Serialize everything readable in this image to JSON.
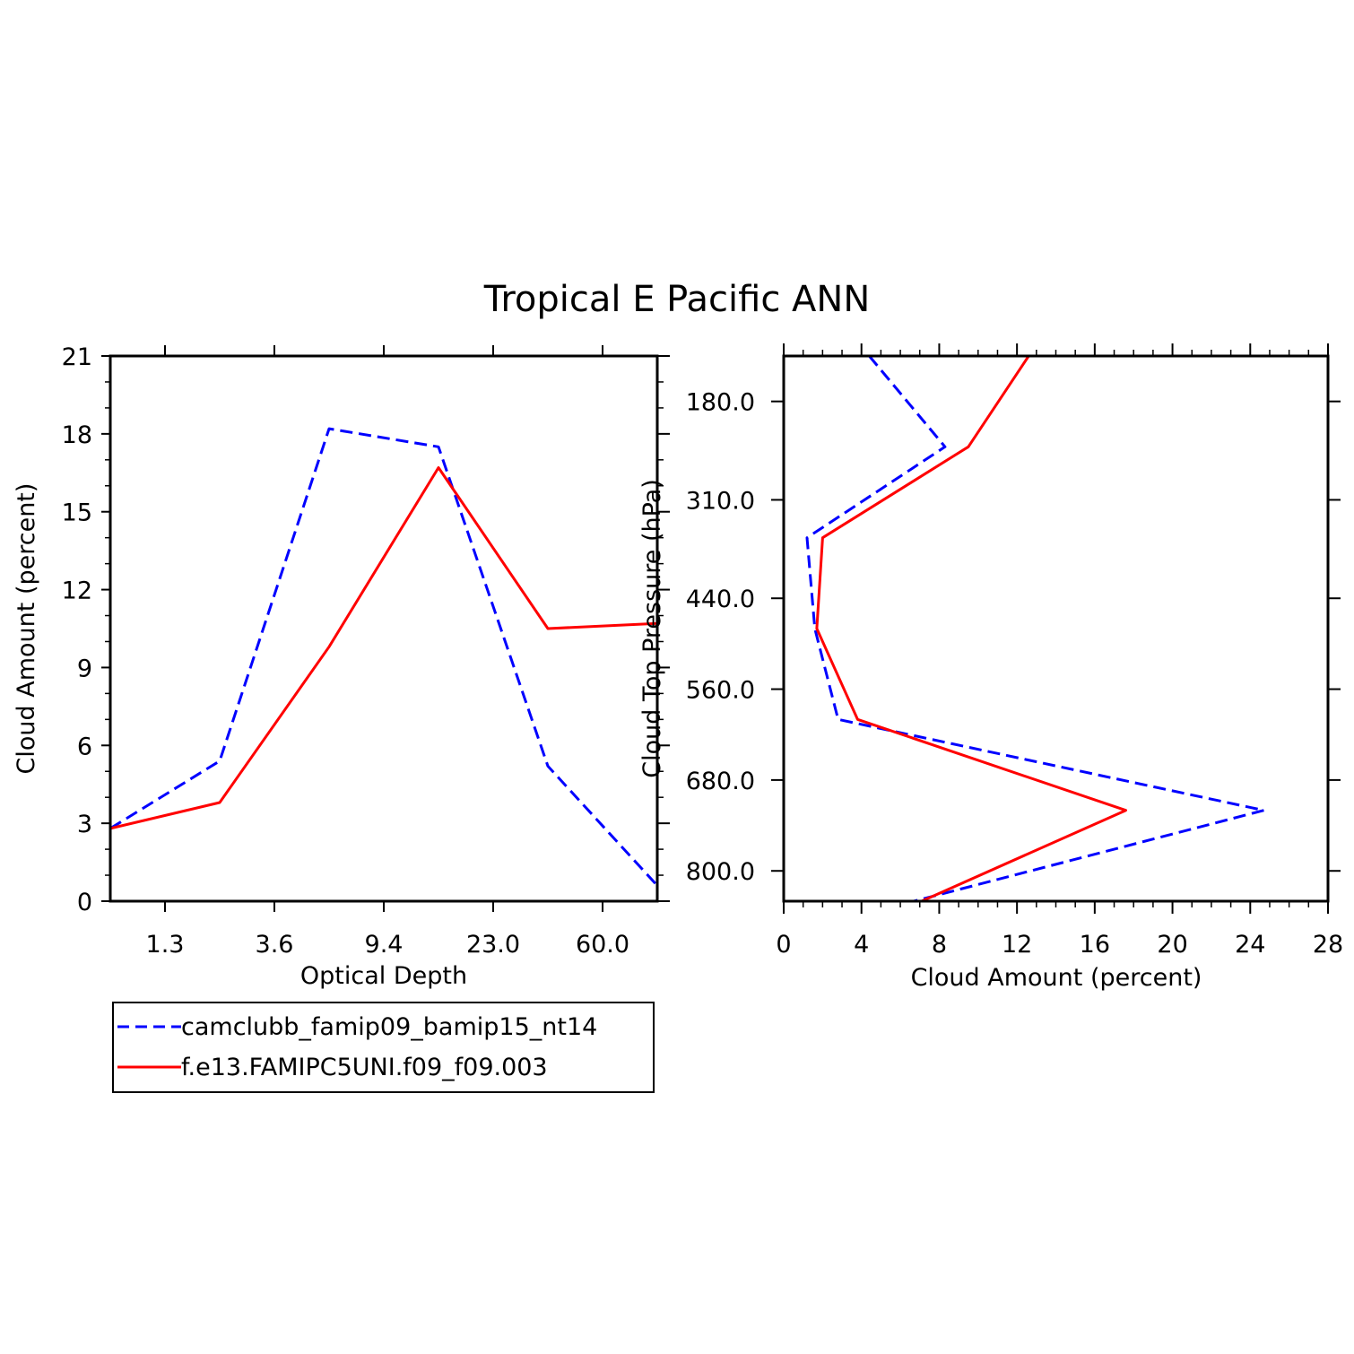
{
  "title": "Tropical E Pacific ANN",
  "chart_data": [
    {
      "type": "line",
      "xlabel": "Optical Depth",
      "ylabel": "Cloud Amount (percent)",
      "categories": [
        "1.3",
        "3.6",
        "9.4",
        "23.0",
        "60.0"
      ],
      "x": [
        0,
        1,
        2,
        3,
        4,
        5
      ],
      "xlim": [
        0,
        5
      ],
      "ylim": [
        0,
        21
      ],
      "yticks": [
        0,
        3,
        6,
        9,
        12,
        15,
        18,
        21
      ],
      "series": [
        {
          "name": "camclubb_famip09_bamip15_nt14",
          "color": "#0000ff",
          "dash": "dashed",
          "values": [
            2.8,
            5.4,
            18.2,
            17.5,
            5.2,
            0.6
          ]
        },
        {
          "name": "f.e13.FAMIPC5UNI.f09_f09.003",
          "color": "#ff0000",
          "dash": "solid",
          "values": [
            2.8,
            3.8,
            9.8,
            16.7,
            10.5,
            10.7
          ]
        }
      ]
    },
    {
      "type": "line",
      "xlabel": "Cloud Amount (percent)",
      "ylabel": "Cloud Top Pressure (hPa)",
      "xlim": [
        0,
        28
      ],
      "xticks": [
        0,
        4,
        8,
        12,
        16,
        20,
        24,
        28
      ],
      "yticks": [
        180,
        310,
        440,
        560,
        680,
        800
      ],
      "ytick_labels": [
        "180.0",
        "310.0",
        "440.0",
        "560.0",
        "680.0",
        "800.0"
      ],
      "ylim": [
        120,
        840
      ],
      "y": [
        120,
        240,
        360,
        480,
        600,
        720,
        840
      ],
      "series": [
        {
          "name": "camclubb_famip09_bamip15_nt14",
          "color": "#0000ff",
          "dash": "dashed",
          "values": [
            4.4,
            8.3,
            1.2,
            1.6,
            2.8,
            24.7,
            6.7
          ]
        },
        {
          "name": "f.e13.FAMIPC5UNI.f09_f09.003",
          "color": "#ff0000",
          "dash": "solid",
          "values": [
            12.6,
            9.5,
            2.0,
            1.7,
            3.8,
            17.6,
            7.1
          ]
        }
      ]
    }
  ],
  "legend": [
    {
      "label": "camclubb_famip09_bamip15_nt14",
      "color": "#0000ff",
      "dash": "dashed"
    },
    {
      "label": "f.e13.FAMIPC5UNI.f09_f09.003",
      "color": "#ff0000",
      "dash": "solid"
    }
  ]
}
